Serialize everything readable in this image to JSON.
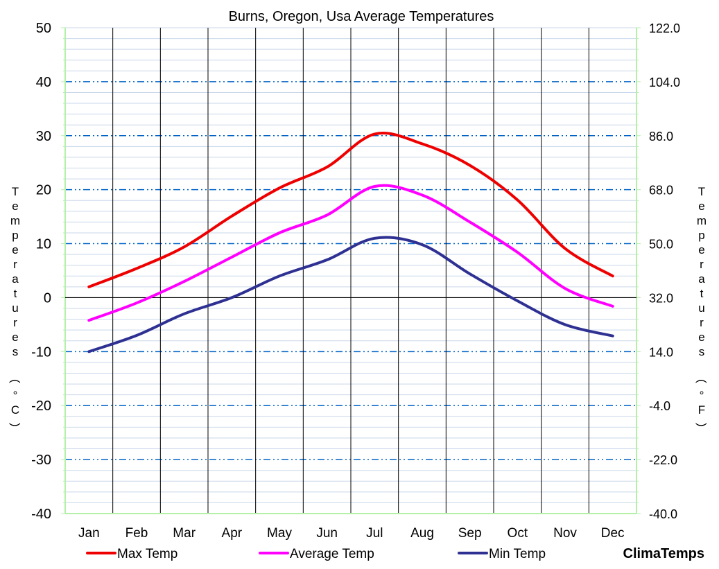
{
  "chart_data": {
    "type": "line",
    "title": "Burns, Oregon, Usa Average Temperatures",
    "ylabel_left": "Temperatures (°C)",
    "ylabel_right": "Temperatures (°F)",
    "categories": [
      "Jan",
      "Feb",
      "Mar",
      "Apr",
      "May",
      "Jun",
      "Jul",
      "Aug",
      "Sep",
      "Oct",
      "Nov",
      "Dec"
    ],
    "ylim": [
      -40,
      50
    ],
    "yticks_left": [
      "50",
      "40",
      "30",
      "20",
      "10",
      "0",
      "-10",
      "-20",
      "-30",
      "-40"
    ],
    "yticks_right": [
      "122.0",
      "104.0",
      "86.0",
      "68.0",
      "50.0",
      "32.0",
      "14.0",
      "-4.0",
      "-22.0",
      "-40.0"
    ],
    "series": [
      {
        "name": "Max Temp",
        "color": "#ee0000",
        "values": [
          2.0,
          5.4,
          9.4,
          15.1,
          20.3,
          24.2,
          30.3,
          28.5,
          24.5,
          18.1,
          9.1,
          4.0
        ]
      },
      {
        "name": "Average Temp",
        "color": "#ff00ff",
        "values": [
          -4.2,
          -1.0,
          3.0,
          7.5,
          12.0,
          15.3,
          20.6,
          19.0,
          14.0,
          8.4,
          1.7,
          -1.6
        ]
      },
      {
        "name": "Min Temp",
        "color": "#2e3192",
        "values": [
          -10.0,
          -7.0,
          -3.0,
          0.0,
          4.0,
          7.0,
          11.0,
          9.8,
          4.4,
          -0.6,
          -5.0,
          -7.1
        ]
      }
    ],
    "grid": true,
    "legend": "bottom"
  },
  "brand": {
    "name": "ClimaTemps",
    "color": "#7030a0"
  }
}
